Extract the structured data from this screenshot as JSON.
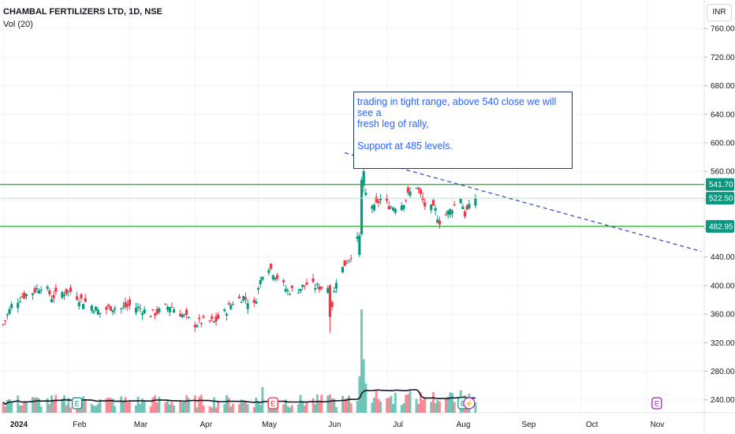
{
  "header": {
    "symbol_title": "CHAMBAL FERTILIZERS LTD, 1D, NSE",
    "volume_indicator": "Vol (20)"
  },
  "currency_button": "INR",
  "annotation_text": "trading in tight range, above 540 close we will see a\nfresh leg of rally,\n\nSupport at 485 levels.",
  "price_levels": [
    {
      "label": "541.70",
      "value": 541.7,
      "color": "#089981",
      "line": true
    },
    {
      "label": "522.50",
      "value": 522.5,
      "color": "#089981",
      "line": false
    },
    {
      "label": "482.95",
      "value": 482.95,
      "color": "#089981",
      "line": true
    }
  ],
  "event_markers": [
    {
      "symbol": "E",
      "date": "2024-02-05",
      "color": "#089981"
    },
    {
      "symbol": "E",
      "date": "2024-05-08",
      "color": "#f23645"
    },
    {
      "symbol": "E",
      "date": "2024-08-06",
      "color": "#089981"
    },
    {
      "symbol": "⚡",
      "date": "2024-08-09",
      "color": "#9c27b0"
    },
    {
      "symbol": "E",
      "date": "2024-11-06",
      "color": "#9c27b0"
    }
  ],
  "colors": {
    "up": "#089981",
    "down": "#f23645",
    "level_line": "#22ab2e",
    "trendline": "#3d4fbf",
    "annotation_text": "#2962ff",
    "volume_ma": "#131722"
  },
  "chart_data": {
    "type": "candlestick",
    "title": "CHAMBAL FERTILIZERS LTD, 1D, NSE",
    "x_tick_labels": [
      "2024",
      "Feb",
      "Mar",
      "Apr",
      "May",
      "Jun",
      "Jul",
      "Aug",
      "Sep",
      "Oct",
      "Nov"
    ],
    "y_tick_labels": [
      "240.00",
      "280.00",
      "320.00",
      "360.00",
      "400.00",
      "440.00",
      "480.00",
      "520.00",
      "560.00",
      "600.00",
      "640.00",
      "680.00",
      "720.00",
      "760.00"
    ],
    "ylim": [
      222,
      800
    ],
    "xlim": [
      "2024-01-01",
      "2024-11-27"
    ],
    "trendline": {
      "start": [
        "2024-06-11",
        586
      ],
      "end": [
        "2024-11-27",
        448
      ],
      "style": "dashed"
    },
    "volume_ma_period": 20,
    "series": [
      {
        "date": "2024-01-01",
        "close": 345
      },
      {
        "date": "2024-01-05",
        "close": 372
      },
      {
        "date": "2024-01-10",
        "close": 385
      },
      {
        "date": "2024-01-15",
        "close": 391
      },
      {
        "date": "2024-01-20",
        "close": 402
      },
      {
        "date": "2024-01-24",
        "close": 384
      },
      {
        "date": "2024-01-29",
        "close": 390
      },
      {
        "date": "2024-02-02",
        "close": 392
      },
      {
        "date": "2024-02-07",
        "close": 380
      },
      {
        "date": "2024-02-12",
        "close": 372
      },
      {
        "date": "2024-02-16",
        "close": 362
      },
      {
        "date": "2024-02-21",
        "close": 370
      },
      {
        "date": "2024-02-26",
        "close": 368
      },
      {
        "date": "2024-03-01",
        "close": 372
      },
      {
        "date": "2024-03-06",
        "close": 368
      },
      {
        "date": "2024-03-11",
        "close": 360
      },
      {
        "date": "2024-03-15",
        "close": 364
      },
      {
        "date": "2024-03-20",
        "close": 372
      },
      {
        "date": "2024-03-26",
        "close": 359
      },
      {
        "date": "2024-04-01",
        "close": 346
      },
      {
        "date": "2024-04-05",
        "close": 350
      },
      {
        "date": "2024-04-10",
        "close": 349
      },
      {
        "date": "2024-04-15",
        "close": 362
      },
      {
        "date": "2024-04-19",
        "close": 377
      },
      {
        "date": "2024-04-24",
        "close": 384
      },
      {
        "date": "2024-04-29",
        "close": 372
      },
      {
        "date": "2024-05-03",
        "close": 418
      },
      {
        "date": "2024-05-06",
        "close": 427
      },
      {
        "date": "2024-05-10",
        "close": 412
      },
      {
        "date": "2024-05-15",
        "close": 392
      },
      {
        "date": "2024-05-20",
        "close": 395
      },
      {
        "date": "2024-05-24",
        "close": 402
      },
      {
        "date": "2024-05-29",
        "close": 398
      },
      {
        "date": "2024-06-03",
        "close": 398
      },
      {
        "date": "2024-06-04",
        "close": 356
      },
      {
        "date": "2024-06-07",
        "close": 408
      },
      {
        "date": "2024-06-11",
        "close": 430
      },
      {
        "date": "2024-06-14",
        "close": 443
      },
      {
        "date": "2024-06-18",
        "close": 470
      },
      {
        "date": "2024-06-20",
        "close": 560
      },
      {
        "date": "2024-06-21",
        "close": 528
      },
      {
        "date": "2024-06-25",
        "close": 508
      },
      {
        "date": "2024-06-28",
        "close": 522
      },
      {
        "date": "2024-07-03",
        "close": 510
      },
      {
        "date": "2024-07-08",
        "close": 514
      },
      {
        "date": "2024-07-12",
        "close": 530
      },
      {
        "date": "2024-07-15",
        "close": 540
      },
      {
        "date": "2024-07-19",
        "close": 512
      },
      {
        "date": "2024-07-24",
        "close": 505
      },
      {
        "date": "2024-07-26",
        "close": 490
      },
      {
        "date": "2024-07-31",
        "close": 505
      },
      {
        "date": "2024-08-05",
        "close": 524
      },
      {
        "date": "2024-08-07",
        "close": 500
      },
      {
        "date": "2024-08-12",
        "close": 522
      }
    ]
  }
}
